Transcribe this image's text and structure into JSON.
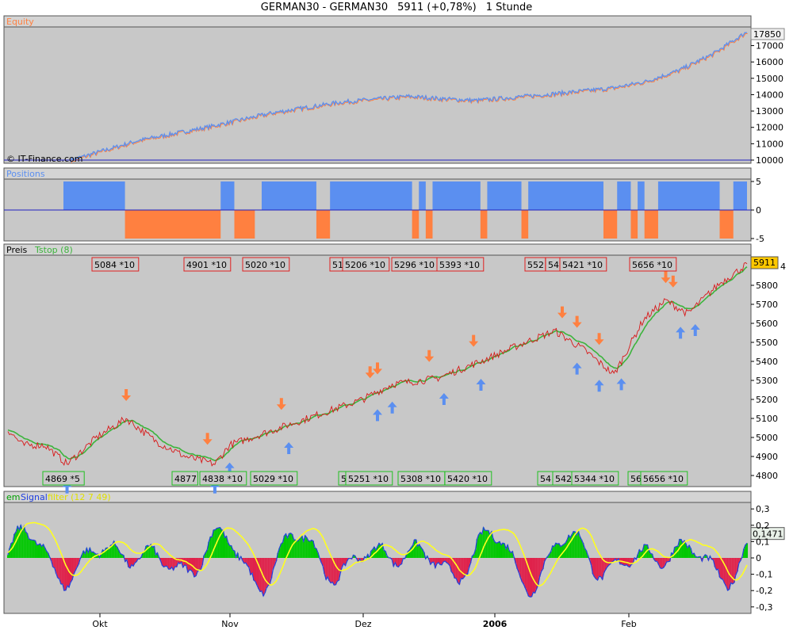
{
  "header": {
    "symbol": "GERMAN30 - GERMAN30",
    "price": "5911 (+0,78%)",
    "period": "1 Stunde"
  },
  "watermark": "© IT-Finance.com",
  "colors": {
    "panel_bg": "#c8c8c8",
    "equity_line": "#5b8ff0",
    "long_blue": "#5b8ff0",
    "short_orange": "#ff8040",
    "tstop_green": "#3cb43c",
    "price_red": "#d81818",
    "hist_green": "#00c800",
    "hist_red": "#e0204a",
    "signal_yellow": "#ffff20",
    "osc_blue": "#2040e0"
  },
  "panels": {
    "equity": {
      "label": "Equity",
      "last_value": "17850",
      "y_ticks": [
        10000,
        11000,
        12000,
        13000,
        14000,
        15000,
        16000,
        17000
      ]
    },
    "positions": {
      "label": "Positions",
      "y_ticks": [
        "5",
        "0",
        "-5"
      ]
    },
    "price": {
      "label": "Preis",
      "indicator": "Tstop (8)",
      "last_value": "5911",
      "last_value_right": "4",
      "y_ticks": [
        4800,
        4900,
        5000,
        5100,
        5200,
        5300,
        5400,
        5500,
        5600,
        5700,
        5800
      ],
      "top_labels": [
        {
          "text": "5084",
          "mult": "*10"
        },
        {
          "text": "4901",
          "mult": "*10"
        },
        {
          "text": "5020",
          "mult": "*10"
        },
        {
          "text": "51",
          "mult": ""
        },
        {
          "text": "5206",
          "mult": "*10"
        },
        {
          "text": "5296",
          "mult": "*10"
        },
        {
          "text": "5393",
          "mult": "*10"
        },
        {
          "text": "552",
          "mult": ""
        },
        {
          "text": "54",
          "mult": ""
        },
        {
          "text": "5421",
          "mult": "*10"
        },
        {
          "text": "5656",
          "mult": "*10"
        }
      ],
      "bottom_labels": [
        {
          "text": "4869",
          "mult": "*5"
        },
        {
          "text": "4877",
          "mult": ""
        },
        {
          "text": "4838",
          "mult": "*10"
        },
        {
          "text": "5029",
          "mult": "*10"
        },
        {
          "text": "5",
          "mult": ""
        },
        {
          "text": "5251",
          "mult": "*10"
        },
        {
          "text": "5308",
          "mult": "*10"
        },
        {
          "text": "5420",
          "mult": "*10"
        },
        {
          "text": "54",
          "mult": ""
        },
        {
          "text": "542",
          "mult": ""
        },
        {
          "text": "5344",
          "mult": "*10"
        },
        {
          "text": "56",
          "mult": ""
        },
        {
          "text": "5656",
          "mult": "*10"
        }
      ]
    },
    "oscillator": {
      "label_a": "em",
      "label_b": "Signal",
      "label_c": "filter (12 7 49)",
      "last_value": "0,1471",
      "y_ticks": [
        "0,3",
        "0,2",
        "0,1",
        "0",
        "-0,1",
        "-0,2",
        "-0,3"
      ]
    }
  },
  "x_axis": {
    "labels": [
      {
        "text": "Okt",
        "bold": false
      },
      {
        "text": "Nov",
        "bold": false
      },
      {
        "text": "Dez",
        "bold": false
      },
      {
        "text": "2006",
        "bold": true
      },
      {
        "text": "Feb",
        "bold": false
      }
    ]
  },
  "chart_data": {
    "type": "line",
    "x_months": [
      "Okt",
      "Nov",
      "Dez",
      "2006",
      "Feb"
    ],
    "equity": {
      "points": [
        [
          0,
          10000
        ],
        [
          0.05,
          10600
        ],
        [
          0.1,
          11200
        ],
        [
          0.2,
          12000
        ],
        [
          0.3,
          12900
        ],
        [
          0.4,
          13550
        ],
        [
          0.5,
          13900
        ],
        [
          0.55,
          13750
        ],
        [
          0.6,
          13650
        ],
        [
          0.7,
          14000
        ],
        [
          0.8,
          14400
        ],
        [
          0.85,
          14800
        ],
        [
          0.9,
          15500
        ],
        [
          0.95,
          16500
        ],
        [
          1.0,
          17850
        ]
      ],
      "ylim": [
        10000,
        17850
      ]
    },
    "positions": {
      "long_segments": [
        [
          0.0,
          0.09
        ],
        [
          0.23,
          0.25
        ],
        [
          0.29,
          0.37
        ],
        [
          0.39,
          0.51
        ],
        [
          0.52,
          0.53
        ],
        [
          0.54,
          0.61
        ],
        [
          0.62,
          0.67
        ],
        [
          0.68,
          0.79
        ],
        [
          0.81,
          0.83
        ],
        [
          0.84,
          0.85
        ],
        [
          0.87,
          0.96
        ],
        [
          0.98,
          1.0
        ]
      ],
      "short_segments": [
        [
          0.09,
          0.23
        ],
        [
          0.25,
          0.28
        ],
        [
          0.37,
          0.39
        ],
        [
          0.51,
          0.52
        ],
        [
          0.53,
          0.54
        ],
        [
          0.61,
          0.62
        ],
        [
          0.67,
          0.68
        ],
        [
          0.79,
          0.81
        ],
        [
          0.83,
          0.84
        ],
        [
          0.85,
          0.87
        ],
        [
          0.96,
          0.98
        ]
      ],
      "ylim": [
        -5,
        5
      ]
    },
    "price": {
      "points": [
        [
          0,
          5040
        ],
        [
          0.02,
          4960
        ],
        [
          0.05,
          4960
        ],
        [
          0.08,
          4860
        ],
        [
          0.12,
          5000
        ],
        [
          0.16,
          5100
        ],
        [
          0.2,
          4980
        ],
        [
          0.24,
          4900
        ],
        [
          0.28,
          4860
        ],
        [
          0.3,
          4960
        ],
        [
          0.36,
          5040
        ],
        [
          0.42,
          5120
        ],
        [
          0.48,
          5200
        ],
        [
          0.52,
          5280
        ],
        [
          0.58,
          5310
        ],
        [
          0.64,
          5400
        ],
        [
          0.7,
          5500
        ],
        [
          0.74,
          5560
        ],
        [
          0.78,
          5460
        ],
        [
          0.82,
          5330
        ],
        [
          0.86,
          5620
        ],
        [
          0.89,
          5720
        ],
        [
          0.92,
          5650
        ],
        [
          0.96,
          5800
        ],
        [
          1.0,
          5911
        ]
      ],
      "ylim": [
        4750,
        5950
      ],
      "buy_arrows": [
        0.08,
        0.28,
        0.3,
        0.38,
        0.5,
        0.52,
        0.59,
        0.64,
        0.77,
        0.8,
        0.83,
        0.91,
        0.93
      ],
      "sell_arrows": [
        0.16,
        0.27,
        0.37,
        0.49,
        0.5,
        0.57,
        0.63,
        0.75,
        0.77,
        0.8,
        0.89,
        0.9
      ]
    },
    "oscillator": {
      "ylim": [
        -0.33,
        0.33
      ],
      "last": 0.1471
    }
  }
}
